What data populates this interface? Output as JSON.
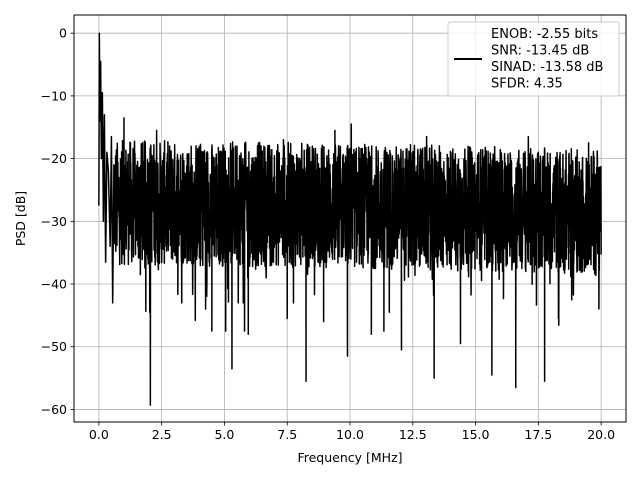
{
  "chart_data": {
    "type": "line",
    "title": "",
    "xlabel": "Frequency [MHz]",
    "ylabel": "PSD [dB]",
    "xlim": [
      -0.99,
      20.99
    ],
    "ylim": [
      -62.0,
      2.9
    ],
    "xticks": [
      0.0,
      2.5,
      5.0,
      7.5,
      10.0,
      12.5,
      15.0,
      17.5,
      20.0
    ],
    "xtick_labels": [
      "0.0",
      "2.5",
      "5.0",
      "7.5",
      "10.0",
      "12.5",
      "15.0",
      "17.5",
      "20.0"
    ],
    "yticks": [
      0,
      -10,
      -20,
      -30,
      -40,
      -50,
      -60
    ],
    "ytick_labels": [
      "0",
      "−10",
      "−20",
      "−30",
      "−40",
      "−50",
      "−60"
    ],
    "grid": true,
    "legend_position": "top-right",
    "line_color": "#000000",
    "legend": {
      "lines": [
        "ENOB: -2.55 bits",
        "SNR: -13.45 dB",
        "SINAD: -13.58 dB",
        "SFDR: 4.35"
      ]
    },
    "series": [
      {
        "color": "#000000",
        "x_start": 0,
        "x_end": 20,
        "points": [
          [
            0.0,
            -27.5
          ],
          [
            0.02,
            0.0
          ],
          [
            0.04,
            -14.0
          ],
          [
            0.07,
            -4.5
          ],
          [
            0.1,
            -20.0
          ],
          [
            0.14,
            -9.5
          ],
          [
            0.18,
            -30.0
          ],
          [
            0.22,
            -13.0
          ],
          [
            0.27,
            -36.5
          ],
          [
            0.32,
            -19.0
          ],
          [
            0.38,
            -22.0
          ],
          [
            0.45,
            -34.0
          ],
          [
            0.5,
            -16.5
          ],
          [
            0.55,
            -43.0
          ],
          [
            0.6,
            -21.0
          ],
          [
            1.0,
            -13.5
          ],
          [
            1.35,
            -31.5
          ],
          [
            2.05,
            -59.3
          ],
          [
            2.3,
            -15.5
          ],
          [
            3.3,
            -43.0
          ],
          [
            4.25,
            -44.0
          ],
          [
            4.5,
            -47.5
          ],
          [
            5.05,
            -47.5
          ],
          [
            5.3,
            -53.5
          ],
          [
            5.5,
            -18.0
          ],
          [
            5.55,
            -43.0
          ],
          [
            5.75,
            -43.0
          ],
          [
            5.8,
            -47.5
          ],
          [
            5.95,
            -48.0
          ],
          [
            6.35,
            -36.0
          ],
          [
            7.35,
            -17.0
          ],
          [
            7.5,
            -45.5
          ],
          [
            7.75,
            -43.0
          ],
          [
            8.25,
            -55.5
          ],
          [
            8.5,
            -18.0
          ],
          [
            8.95,
            -46.0
          ],
          [
            9.4,
            -15.5
          ],
          [
            9.9,
            -51.5
          ],
          [
            10.05,
            -14.5
          ],
          [
            10.85,
            -48.0
          ],
          [
            11.35,
            -47.5
          ],
          [
            12.05,
            -50.5
          ],
          [
            13.05,
            -16.5
          ],
          [
            13.35,
            -55.0
          ],
          [
            14.4,
            -49.5
          ],
          [
            15.65,
            -54.5
          ],
          [
            16.6,
            -56.5
          ],
          [
            17.1,
            -16.5
          ],
          [
            17.75,
            -55.5
          ],
          [
            18.3,
            -45.5
          ],
          [
            19.5,
            -17.5
          ]
        ],
        "noise_floor_trend": [
          [
            0.6,
            -27.0
          ],
          [
            10.0,
            -27.5
          ],
          [
            20.0,
            -28.5
          ]
        ]
      }
    ]
  }
}
